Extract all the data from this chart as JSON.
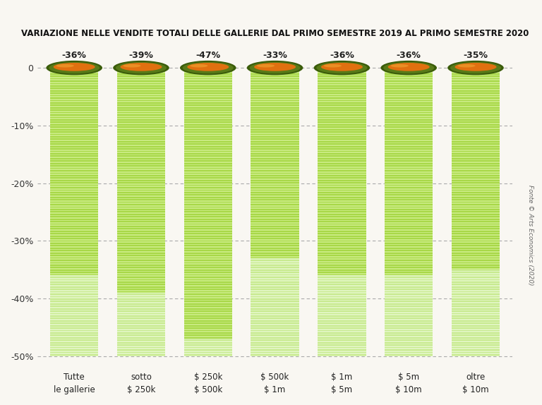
{
  "title": "VARIAZIONE NELLE VENDITE TOTALI DELLE GALLERIE DAL PRIMO SEMESTRE 2019 AL PRIMO SEMESTRE 2020",
  "categories": [
    "Tutte\nle gallerie",
    "sotto\n$ 250k",
    "$ 250k\n$ 500k",
    "$ 500k\n$ 1m",
    "$ 1m\n$ 5m",
    "$ 5m\n$ 10m",
    "oltre\n$ 10m"
  ],
  "values": [
    -36,
    -39,
    -47,
    -33,
    -36,
    -36,
    -35
  ],
  "ylim": [
    -52,
    3.5
  ],
  "bar_bottom": -50,
  "yticks": [
    0,
    -10,
    -20,
    -30,
    -40,
    -50
  ],
  "yticklabels": [
    "0",
    "-10%",
    "-20%",
    "-30%",
    "-40%",
    "-50%"
  ],
  "source_text": "Fonte © Arts Economics (2020)",
  "background_color": "#f9f7f2",
  "bar_width": 0.72,
  "title_fontsize": 8.5,
  "col_stripe_dark": "#a8d848",
  "col_stripe_bg_dark": "#c8ea80",
  "col_stripe_light": "#c8ea90",
  "col_stripe_bg_light": "#e0f5c0",
  "col_dome_outer": "#3a5c0a",
  "col_dome_mid": "#587a18",
  "col_dome_orange": "#e07010",
  "col_dome_highlight": "#f0a030"
}
